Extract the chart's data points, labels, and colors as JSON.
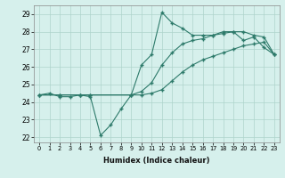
{
  "xlabel": "Humidex (Indice chaleur)",
  "xlim": [
    -0.5,
    23.5
  ],
  "ylim": [
    21.7,
    29.5
  ],
  "xticks": [
    0,
    1,
    2,
    3,
    4,
    5,
    6,
    7,
    8,
    9,
    10,
    11,
    12,
    13,
    14,
    15,
    16,
    17,
    18,
    19,
    20,
    21,
    22,
    23
  ],
  "yticks": [
    22,
    23,
    24,
    25,
    26,
    27,
    28,
    29
  ],
  "background_color": "#d6f0ec",
  "grid_color": "#aed4cc",
  "line_color": "#2d7a6a",
  "line1_x": [
    0,
    1,
    2,
    3,
    4,
    5,
    6,
    7,
    8,
    9,
    10,
    11,
    12,
    13,
    14,
    15,
    16,
    17,
    18,
    19,
    20,
    21,
    22,
    23
  ],
  "line1_y": [
    24.4,
    24.5,
    24.3,
    24.3,
    24.4,
    24.3,
    22.1,
    22.7,
    23.6,
    24.4,
    26.1,
    26.7,
    29.1,
    28.5,
    28.2,
    27.8,
    27.8,
    27.8,
    28.0,
    28.0,
    27.5,
    27.7,
    27.1,
    26.7
  ],
  "line2_x": [
    0,
    2,
    4,
    5,
    9,
    10,
    11,
    12,
    13,
    14,
    15,
    16,
    17,
    18,
    19,
    20,
    21,
    22,
    23
  ],
  "line2_y": [
    24.4,
    24.4,
    24.4,
    24.4,
    24.4,
    24.6,
    25.1,
    26.1,
    26.8,
    27.3,
    27.5,
    27.6,
    27.8,
    27.9,
    28.0,
    28.0,
    27.8,
    27.7,
    26.7
  ],
  "line3_x": [
    0,
    2,
    4,
    5,
    9,
    10,
    11,
    12,
    13,
    14,
    15,
    16,
    17,
    18,
    19,
    20,
    21,
    22,
    23
  ],
  "line3_y": [
    24.4,
    24.4,
    24.4,
    24.4,
    24.4,
    24.4,
    24.5,
    24.7,
    25.2,
    25.7,
    26.1,
    26.4,
    26.6,
    26.8,
    27.0,
    27.2,
    27.3,
    27.4,
    26.7
  ]
}
